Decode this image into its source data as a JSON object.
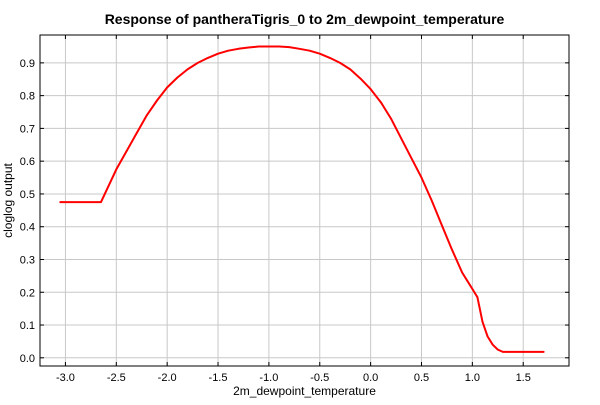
{
  "chart_data": {
    "type": "line",
    "title": "Response of pantheraTigris_0 to 2m_dewpoint_temperature",
    "xlabel": "2m_dewpoint_temperature",
    "ylabel": "cloglog output",
    "xlim": [
      -3.25,
      1.95
    ],
    "ylim": [
      -0.025,
      0.985
    ],
    "x_ticks": [
      -3.0,
      -2.5,
      -2.0,
      -1.5,
      -1.0,
      -0.5,
      0.0,
      0.5,
      1.0,
      1.5
    ],
    "x_tick_labels": [
      "-3.0",
      "-2.5",
      "-2.0",
      "-1.5",
      "-1.0",
      "-0.5",
      "0.0",
      "0.5",
      "1.0",
      "1.5"
    ],
    "y_ticks": [
      0.0,
      0.1,
      0.2,
      0.3,
      0.4,
      0.5,
      0.6,
      0.7,
      0.8,
      0.9
    ],
    "y_tick_labels": [
      "0.0",
      "0.1",
      "0.2",
      "0.3",
      "0.4",
      "0.5",
      "0.6",
      "0.7",
      "0.8",
      "0.9"
    ],
    "grid": true,
    "series": [
      {
        "color": "#ff0000",
        "x": [
          -3.05,
          -2.65,
          -2.5,
          -2.4,
          -2.3,
          -2.2,
          -2.1,
          -2.0,
          -1.9,
          -1.8,
          -1.7,
          -1.6,
          -1.5,
          -1.4,
          -1.3,
          -1.2,
          -1.1,
          -1.0,
          -0.9,
          -0.8,
          -0.7,
          -0.6,
          -0.5,
          -0.4,
          -0.3,
          -0.2,
          -0.1,
          0.0,
          0.1,
          0.2,
          0.3,
          0.4,
          0.5,
          0.6,
          0.7,
          0.8,
          0.9,
          0.95,
          1.0,
          1.05,
          1.1,
          1.15,
          1.2,
          1.25,
          1.3,
          1.35,
          1.5,
          1.6,
          1.7
        ],
        "y": [
          0.475,
          0.475,
          0.575,
          0.63,
          0.685,
          0.74,
          0.785,
          0.825,
          0.855,
          0.88,
          0.9,
          0.915,
          0.928,
          0.937,
          0.943,
          0.947,
          0.95,
          0.95,
          0.95,
          0.948,
          0.943,
          0.937,
          0.928,
          0.915,
          0.9,
          0.88,
          0.852,
          0.82,
          0.78,
          0.73,
          0.67,
          0.61,
          0.55,
          0.48,
          0.405,
          0.33,
          0.26,
          0.235,
          0.21,
          0.185,
          0.11,
          0.065,
          0.04,
          0.025,
          0.018,
          0.018,
          0.018,
          0.018,
          0.018
        ]
      }
    ]
  }
}
